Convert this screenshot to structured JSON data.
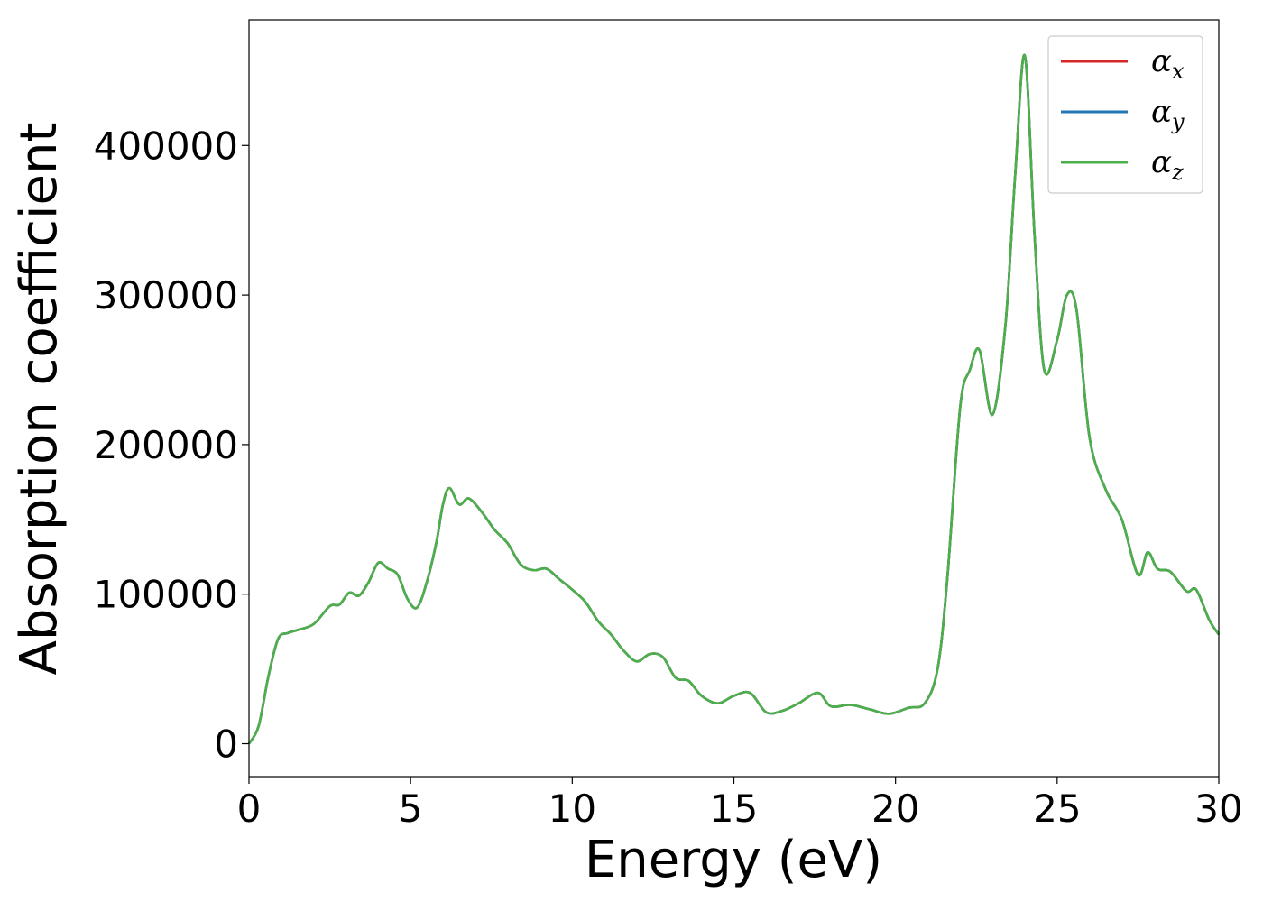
{
  "chart_data": {
    "type": "line",
    "xlabel": "Energy (eV)",
    "ylabel": "Absorption coefficient",
    "xlim": [
      0,
      30
    ],
    "ylim": [
      -22000,
      484000
    ],
    "xticks": [
      0,
      5,
      10,
      15,
      20,
      25,
      30
    ],
    "yticks": [
      0,
      100000,
      200000,
      300000,
      400000
    ],
    "grid": false,
    "legend_position": "top-right",
    "x": [
      0,
      0.3,
      0.6,
      0.9,
      1.2,
      1.5,
      2.0,
      2.5,
      2.8,
      3.1,
      3.4,
      3.7,
      4.0,
      4.3,
      4.6,
      4.9,
      5.2,
      5.5,
      5.8,
      6.0,
      6.2,
      6.5,
      6.8,
      7.2,
      7.6,
      8.0,
      8.4,
      8.8,
      9.2,
      9.6,
      10.0,
      10.4,
      10.8,
      11.2,
      11.6,
      12.0,
      12.4,
      12.8,
      13.2,
      13.6,
      14.0,
      14.5,
      15.0,
      15.5,
      16.0,
      16.5,
      17.0,
      17.6,
      18.0,
      18.6,
      19.2,
      19.8,
      20.4,
      20.9,
      21.3,
      21.6,
      22.0,
      22.3,
      22.6,
      23.0,
      23.4,
      23.7,
      24.0,
      24.3,
      24.6,
      25.0,
      25.3,
      25.6,
      26.0,
      26.5,
      27.0,
      27.5,
      27.8,
      28.1,
      28.5,
      29.0,
      29.3,
      29.7,
      30.0
    ],
    "series": [
      {
        "name": "α_x",
        "color": "#d62728",
        "values": [
          0,
          12000,
          45000,
          70000,
          74000,
          76000,
          80000,
          92000,
          93000,
          101000,
          99000,
          108000,
          121000,
          117000,
          113000,
          97000,
          91000,
          108000,
          135000,
          160000,
          171000,
          160000,
          164000,
          155000,
          143000,
          134000,
          120000,
          116000,
          117000,
          110000,
          103000,
          95000,
          82000,
          73000,
          62000,
          55000,
          60000,
          58000,
          44000,
          42000,
          32000,
          27000,
          32000,
          34000,
          21000,
          22000,
          27000,
          34000,
          25000,
          26000,
          23000,
          20000,
          24000,
          27000,
          50000,
          110000,
          225000,
          250000,
          263000,
          220000,
          280000,
          380000,
          460000,
          340000,
          250000,
          270000,
          300000,
          290000,
          205000,
          170000,
          150000,
          113000,
          128000,
          117000,
          115000,
          102000,
          103000,
          83000,
          73000
        ]
      },
      {
        "name": "α_y",
        "color": "#1f77b4",
        "values": [
          0,
          12000,
          45000,
          70000,
          74000,
          76000,
          80000,
          92000,
          93000,
          101000,
          99000,
          108000,
          121000,
          117000,
          113000,
          97000,
          91000,
          108000,
          135000,
          160000,
          171000,
          160000,
          164000,
          155000,
          143000,
          134000,
          120000,
          116000,
          117000,
          110000,
          103000,
          95000,
          82000,
          73000,
          62000,
          55000,
          60000,
          58000,
          44000,
          42000,
          32000,
          27000,
          32000,
          34000,
          21000,
          22000,
          27000,
          34000,
          25000,
          26000,
          23000,
          20000,
          24000,
          27000,
          50000,
          110000,
          225000,
          250000,
          263000,
          220000,
          280000,
          380000,
          460000,
          340000,
          250000,
          270000,
          300000,
          290000,
          205000,
          170000,
          150000,
          113000,
          128000,
          117000,
          115000,
          102000,
          103000,
          83000,
          73000
        ]
      },
      {
        "name": "α_z",
        "color": "#4daf4a",
        "values": [
          0,
          12000,
          45000,
          70000,
          74000,
          76000,
          80000,
          92000,
          93000,
          101000,
          99000,
          108000,
          121000,
          117000,
          113000,
          97000,
          91000,
          108000,
          135000,
          160000,
          171000,
          160000,
          164000,
          155000,
          143000,
          134000,
          120000,
          116000,
          117000,
          110000,
          103000,
          95000,
          82000,
          73000,
          62000,
          55000,
          60000,
          58000,
          44000,
          42000,
          32000,
          27000,
          32000,
          34000,
          21000,
          22000,
          27000,
          34000,
          25000,
          26000,
          23000,
          20000,
          24000,
          27000,
          50000,
          110000,
          225000,
          250000,
          263000,
          220000,
          280000,
          380000,
          460000,
          340000,
          250000,
          270000,
          300000,
          290000,
          205000,
          170000,
          150000,
          113000,
          128000,
          117000,
          115000,
          102000,
          103000,
          83000,
          73000
        ]
      }
    ],
    "legend_labels": [
      {
        "base": "α",
        "sub": "x"
      },
      {
        "base": "α",
        "sub": "y"
      },
      {
        "base": "α",
        "sub": "z"
      }
    ]
  }
}
